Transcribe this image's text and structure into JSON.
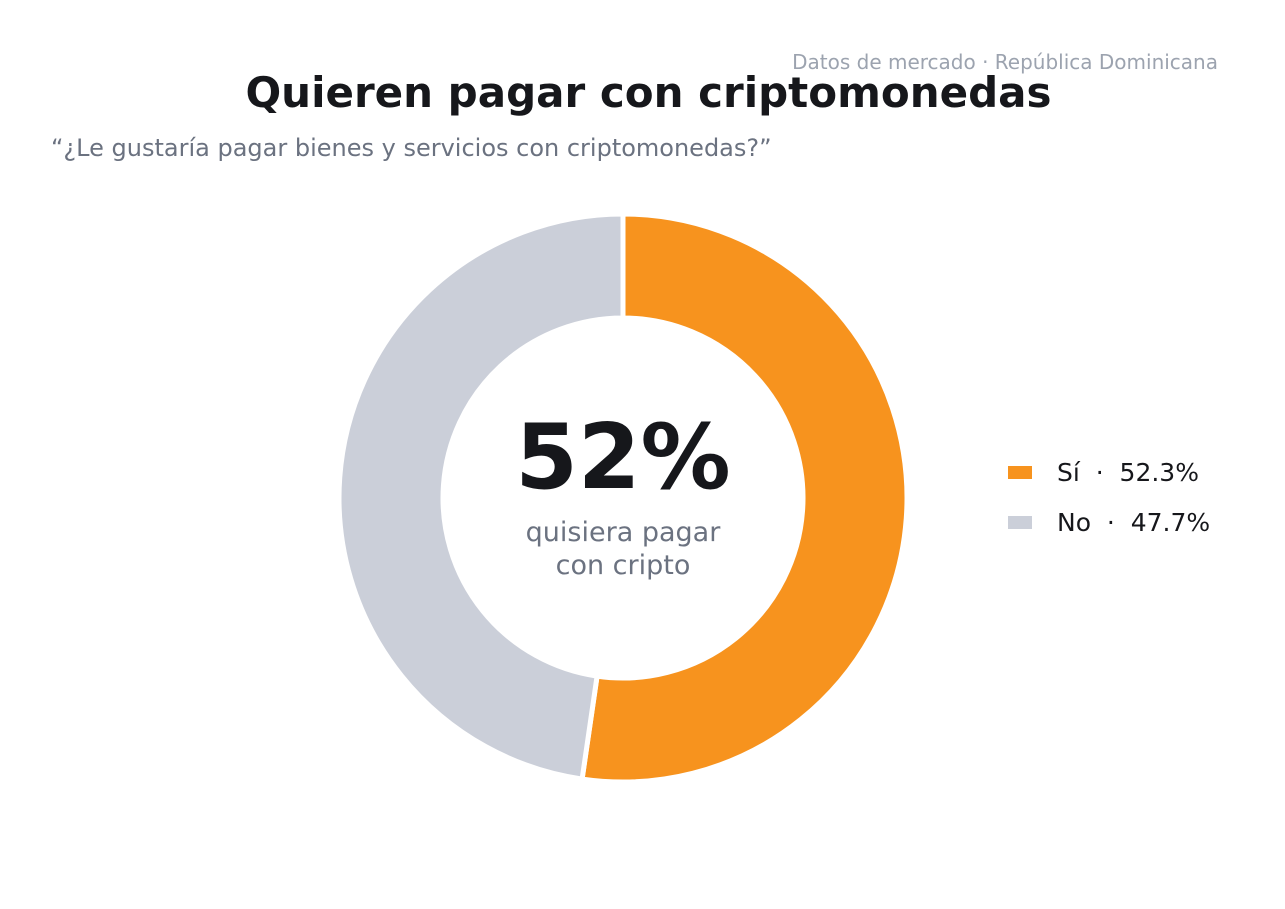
{
  "header": {
    "source": "Datos de mercado · República Dominicana",
    "title": "Quieren pagar con criptomonedas",
    "subtitle": "“¿Le gustaría pagar bienes y servicios con criptomonedas?”"
  },
  "center": {
    "value": "52%",
    "caption_line1": "quisiera pagar",
    "caption_line2": "con cripto"
  },
  "legend": {
    "items": [
      {
        "label": "Sí  ·  52.3%"
      },
      {
        "label": "No  ·  47.7%"
      }
    ]
  },
  "chart_data": {
    "type": "pie",
    "variant": "donut",
    "categories": [
      "Sí",
      "No"
    ],
    "values": [
      52.3,
      47.7
    ],
    "colors": [
      "#f7931e",
      "#cbcfd9"
    ],
    "start": "top",
    "direction": "clockwise",
    "legend_position": "right"
  }
}
